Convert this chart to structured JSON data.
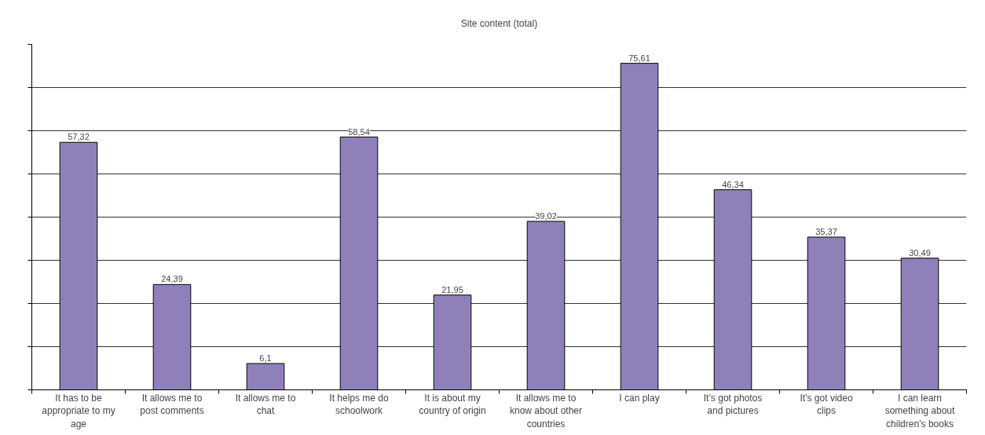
{
  "chart_data": {
    "type": "bar",
    "title": "Site content (total)",
    "categories": [
      "It has to be appropriate to my age",
      "It allows me to post comments",
      "It allows me to chat",
      "It helps me do schoolwork",
      "It is about my country of origin",
      "It allows me to know about other countries",
      "I can play",
      "It’s got photos and pictures",
      "It’s got video clips",
      "I can learn something about children’s books"
    ],
    "values": [
      57.32,
      24.39,
      6.1,
      58.54,
      21.95,
      39.02,
      75.61,
      46.34,
      35.37,
      30.49
    ],
    "value_labels": [
      "57,32",
      "24,39",
      "6,1",
      "58,54",
      "21,95",
      "39,02",
      "75,61",
      "46,34",
      "35,37",
      "30,49"
    ],
    "color": "#9080ba",
    "ylim": [
      0,
      80
    ],
    "yticks": [
      {
        "value": 0,
        "label": null
      },
      {
        "value": 10,
        "label": null
      },
      {
        "value": 20,
        "label": null
      },
      {
        "value": 30,
        "label": null
      },
      {
        "value": 40,
        "label": null
      },
      {
        "value": 50,
        "label": null
      },
      {
        "value": 60,
        "label": null
      },
      {
        "value": 70,
        "label": null
      },
      {
        "value": 80,
        "label": null
      }
    ],
    "grid": "y"
  }
}
